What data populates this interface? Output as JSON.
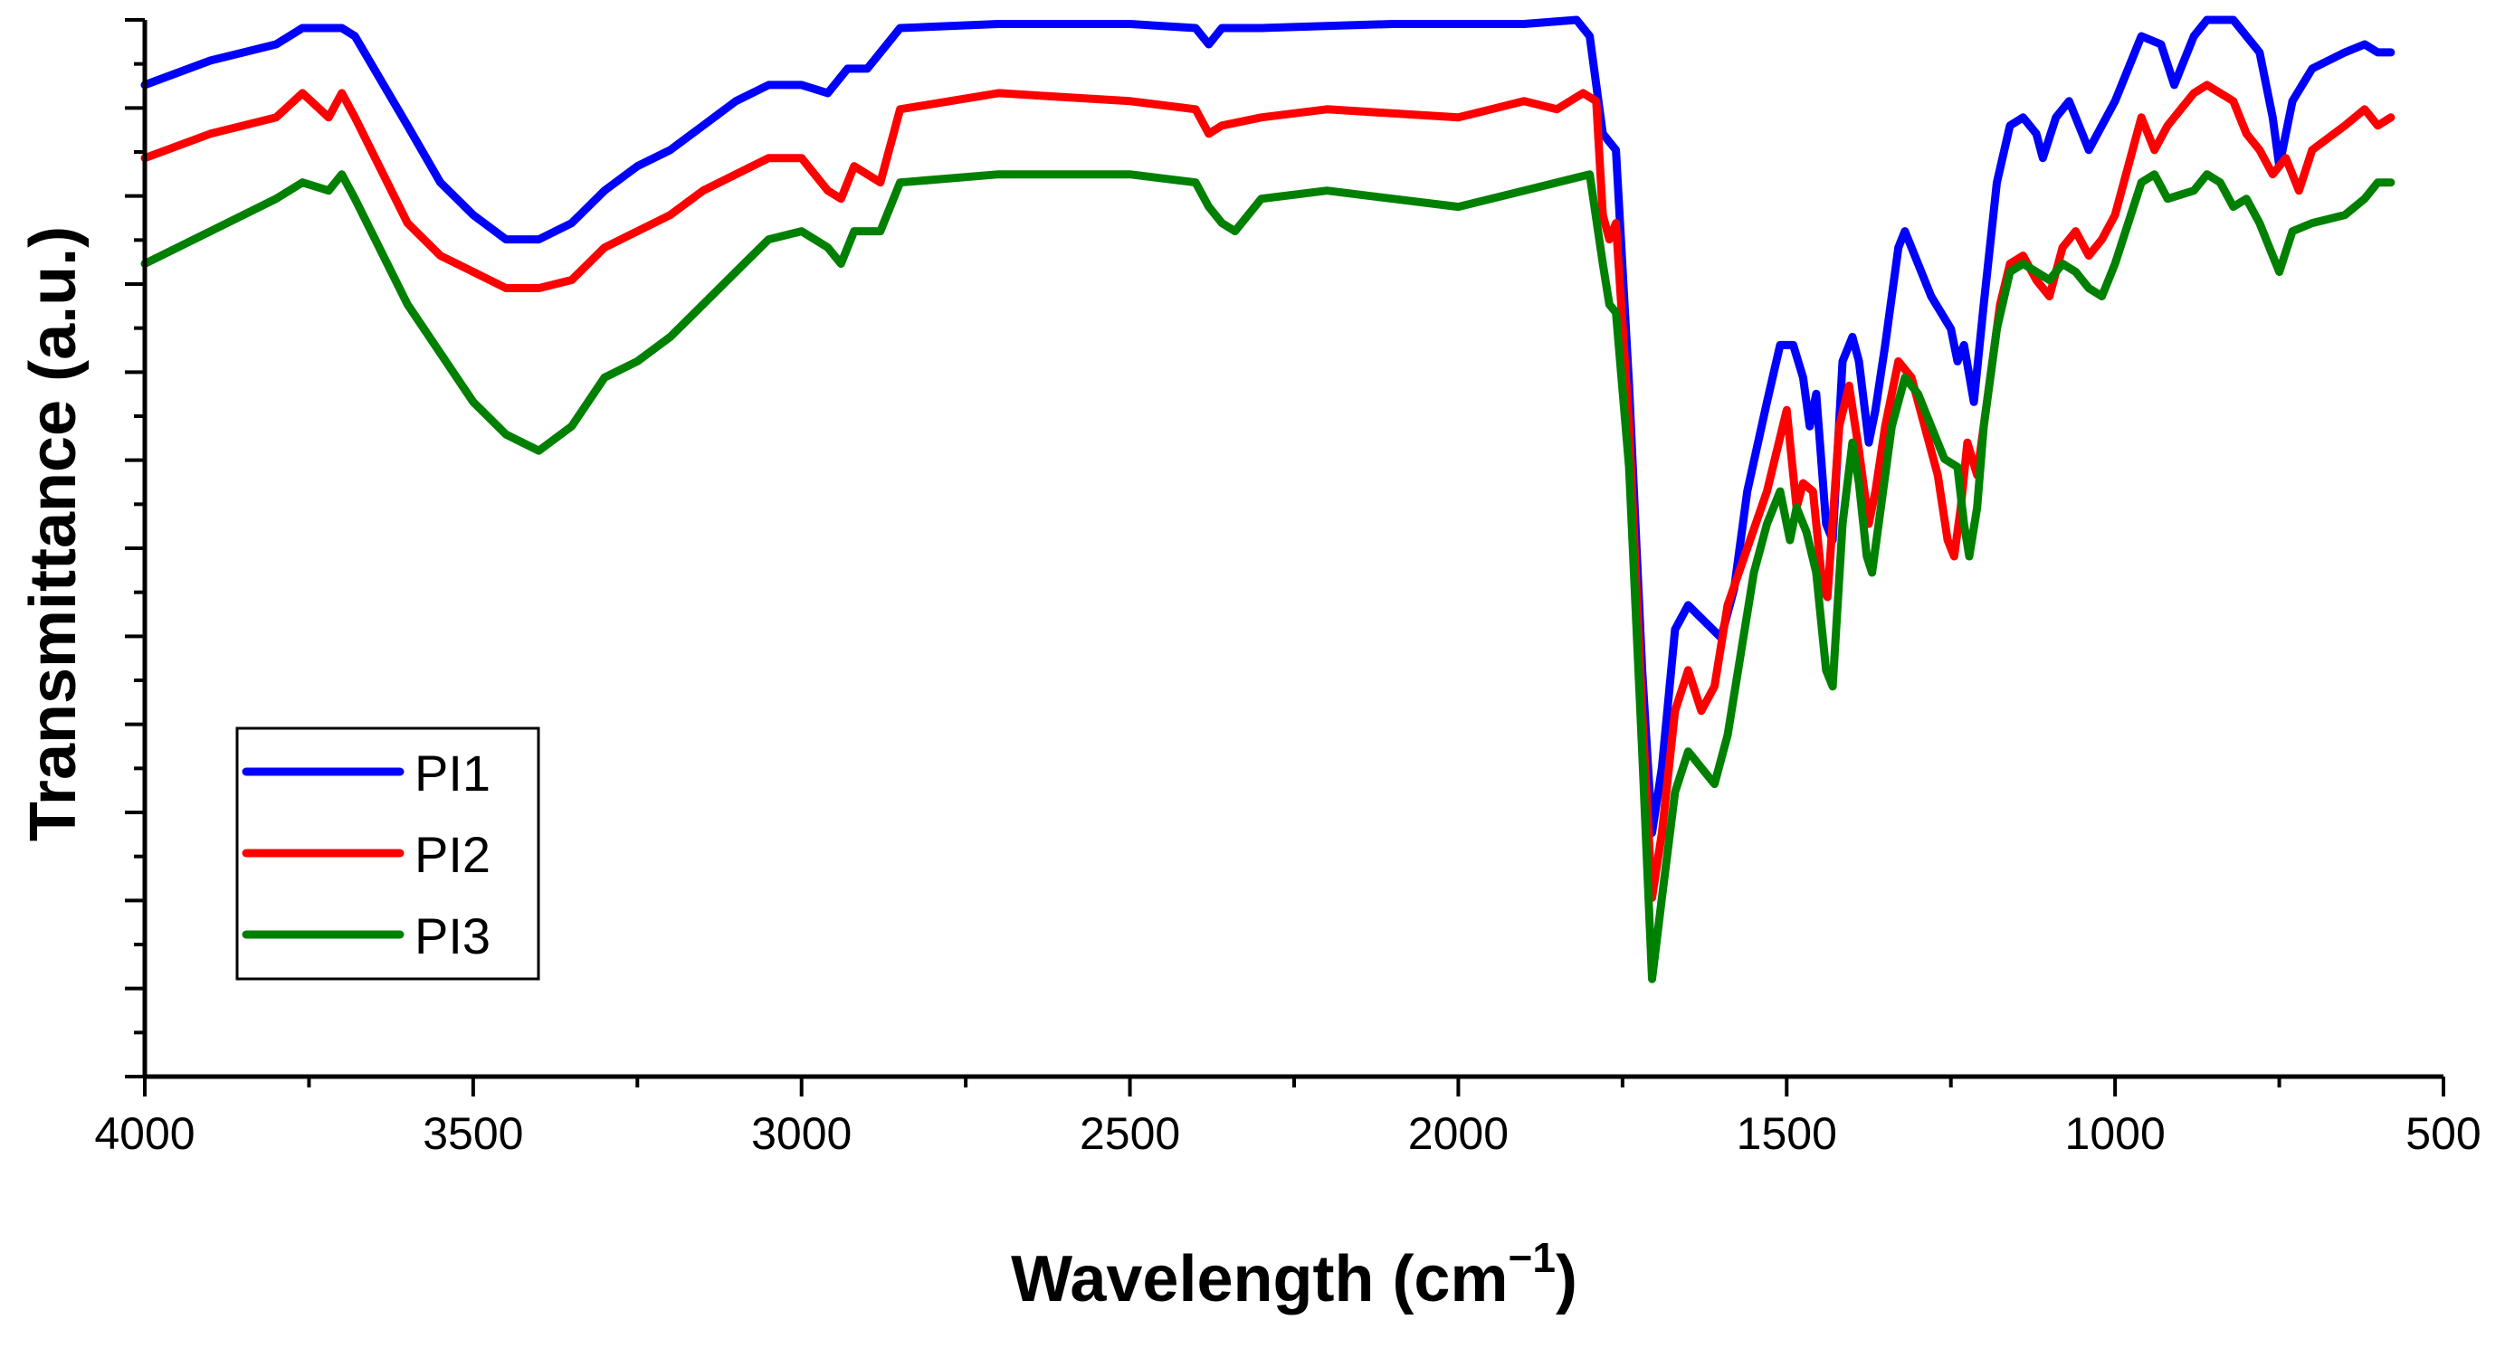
{
  "chart_data": {
    "type": "line",
    "title": "",
    "xlabel": "Wavelength (cm",
    "xlabel_sup": "−1",
    "xlabel_close": ")",
    "ylabel": "Transmittance (a.u.)",
    "xlim": [
      4000,
      500
    ],
    "ylim": [
      0,
      130
    ],
    "x_ticks": [
      4000,
      3500,
      3000,
      2500,
      2000,
      1500,
      1000,
      500
    ],
    "x_tick_labels": [
      "4000",
      "3500",
      "3000",
      "2500",
      "2000",
      "1500",
      "1000",
      "500"
    ],
    "y_major_tick_count": 13,
    "legend_position": "bottom-left",
    "series": [
      {
        "name": "PI1",
        "color": "#0000ff",
        "points": [
          [
            4000,
            122
          ],
          [
            3900,
            125
          ],
          [
            3800,
            127
          ],
          [
            3760,
            129
          ],
          [
            3700,
            129
          ],
          [
            3680,
            128
          ],
          [
            3600,
            117
          ],
          [
            3550,
            110
          ],
          [
            3500,
            106
          ],
          [
            3450,
            103
          ],
          [
            3400,
            103
          ],
          [
            3350,
            105
          ],
          [
            3300,
            109
          ],
          [
            3250,
            112
          ],
          [
            3200,
            114
          ],
          [
            3150,
            117
          ],
          [
            3100,
            120
          ],
          [
            3050,
            122
          ],
          [
            3000,
            122
          ],
          [
            2960,
            121
          ],
          [
            2930,
            124
          ],
          [
            2900,
            124
          ],
          [
            2870,
            127
          ],
          [
            2850,
            129
          ],
          [
            2700,
            129.5
          ],
          [
            2500,
            129.5
          ],
          [
            2400,
            129
          ],
          [
            2380,
            127
          ],
          [
            2360,
            129
          ],
          [
            2300,
            129
          ],
          [
            2100,
            129.5
          ],
          [
            1900,
            129.5
          ],
          [
            1820,
            130
          ],
          [
            1800,
            128
          ],
          [
            1780,
            116
          ],
          [
            1760,
            114
          ],
          [
            1740,
            85
          ],
          [
            1720,
            50
          ],
          [
            1705,
            30
          ],
          [
            1690,
            38
          ],
          [
            1670,
            55
          ],
          [
            1650,
            58
          ],
          [
            1625,
            56
          ],
          [
            1600,
            54
          ],
          [
            1580,
            60
          ],
          [
            1560,
            72
          ],
          [
            1530,
            83
          ],
          [
            1510,
            90
          ],
          [
            1490,
            90
          ],
          [
            1475,
            86
          ],
          [
            1465,
            80
          ],
          [
            1455,
            84
          ],
          [
            1440,
            68
          ],
          [
            1430,
            66
          ],
          [
            1415,
            88
          ],
          [
            1400,
            91
          ],
          [
            1390,
            88
          ],
          [
            1375,
            78
          ],
          [
            1365,
            82
          ],
          [
            1350,
            90
          ],
          [
            1330,
            102
          ],
          [
            1320,
            104
          ],
          [
            1300,
            100
          ],
          [
            1280,
            96
          ],
          [
            1250,
            92
          ],
          [
            1240,
            88
          ],
          [
            1230,
            90
          ],
          [
            1215,
            83
          ],
          [
            1200,
            95
          ],
          [
            1180,
            110
          ],
          [
            1160,
            117
          ],
          [
            1140,
            118
          ],
          [
            1120,
            116
          ],
          [
            1110,
            113
          ],
          [
            1090,
            118
          ],
          [
            1070,
            120
          ],
          [
            1050,
            116
          ],
          [
            1040,
            114
          ],
          [
            1020,
            117
          ],
          [
            1000,
            120
          ],
          [
            960,
            128
          ],
          [
            930,
            127
          ],
          [
            910,
            122
          ],
          [
            880,
            128
          ],
          [
            860,
            130
          ],
          [
            820,
            130
          ],
          [
            800,
            128
          ],
          [
            780,
            126
          ],
          [
            760,
            118
          ],
          [
            750,
            112
          ],
          [
            730,
            120
          ],
          [
            700,
            124
          ],
          [
            650,
            126
          ],
          [
            620,
            127
          ],
          [
            600,
            126
          ],
          [
            580,
            126
          ]
        ]
      },
      {
        "name": "PI2",
        "color": "#ff0000",
        "points": [
          [
            4000,
            113
          ],
          [
            3900,
            116
          ],
          [
            3800,
            118
          ],
          [
            3760,
            121
          ],
          [
            3720,
            118
          ],
          [
            3700,
            121
          ],
          [
            3680,
            118
          ],
          [
            3600,
            105
          ],
          [
            3550,
            101
          ],
          [
            3500,
            99
          ],
          [
            3450,
            97
          ],
          [
            3400,
            97
          ],
          [
            3350,
            98
          ],
          [
            3300,
            102
          ],
          [
            3250,
            104
          ],
          [
            3200,
            106
          ],
          [
            3150,
            109
          ],
          [
            3100,
            111
          ],
          [
            3050,
            113
          ],
          [
            3000,
            113
          ],
          [
            2960,
            109
          ],
          [
            2940,
            108
          ],
          [
            2920,
            112
          ],
          [
            2880,
            110
          ],
          [
            2850,
            119
          ],
          [
            2700,
            121
          ],
          [
            2500,
            120
          ],
          [
            2400,
            119
          ],
          [
            2380,
            116
          ],
          [
            2360,
            117
          ],
          [
            2300,
            118
          ],
          [
            2200,
            119
          ],
          [
            2000,
            118
          ],
          [
            1900,
            120
          ],
          [
            1850,
            119
          ],
          [
            1830,
            120
          ],
          [
            1810,
            121
          ],
          [
            1790,
            120
          ],
          [
            1780,
            106
          ],
          [
            1770,
            103
          ],
          [
            1760,
            105
          ],
          [
            1740,
            80
          ],
          [
            1720,
            45
          ],
          [
            1705,
            22
          ],
          [
            1690,
            30
          ],
          [
            1670,
            45
          ],
          [
            1650,
            50
          ],
          [
            1630,
            45
          ],
          [
            1610,
            48
          ],
          [
            1590,
            58
          ],
          [
            1560,
            65
          ],
          [
            1530,
            72
          ],
          [
            1500,
            82
          ],
          [
            1485,
            70
          ],
          [
            1475,
            73
          ],
          [
            1460,
            72
          ],
          [
            1445,
            60
          ],
          [
            1438,
            59
          ],
          [
            1420,
            80
          ],
          [
            1405,
            85
          ],
          [
            1390,
            77
          ],
          [
            1375,
            68
          ],
          [
            1365,
            72
          ],
          [
            1350,
            80
          ],
          [
            1330,
            88
          ],
          [
            1310,
            86
          ],
          [
            1290,
            80
          ],
          [
            1270,
            74
          ],
          [
            1255,
            66
          ],
          [
            1245,
            64
          ],
          [
            1235,
            70
          ],
          [
            1225,
            78
          ],
          [
            1210,
            74
          ],
          [
            1195,
            83
          ],
          [
            1175,
            95
          ],
          [
            1160,
            100
          ],
          [
            1140,
            101
          ],
          [
            1120,
            98
          ],
          [
            1100,
            96
          ],
          [
            1080,
            102
          ],
          [
            1060,
            104
          ],
          [
            1040,
            101
          ],
          [
            1020,
            103
          ],
          [
            1000,
            106
          ],
          [
            960,
            118
          ],
          [
            940,
            114
          ],
          [
            920,
            117
          ],
          [
            880,
            121
          ],
          [
            860,
            122
          ],
          [
            820,
            120
          ],
          [
            800,
            116
          ],
          [
            780,
            114
          ],
          [
            760,
            111
          ],
          [
            740,
            113
          ],
          [
            720,
            109
          ],
          [
            700,
            114
          ],
          [
            650,
            117
          ],
          [
            620,
            119
          ],
          [
            600,
            117
          ],
          [
            580,
            118
          ]
        ]
      },
      {
        "name": "PI3",
        "color": "#008000",
        "points": [
          [
            4000,
            100
          ],
          [
            3900,
            104
          ],
          [
            3800,
            108
          ],
          [
            3760,
            110
          ],
          [
            3720,
            109
          ],
          [
            3700,
            111
          ],
          [
            3680,
            108
          ],
          [
            3600,
            95
          ],
          [
            3550,
            89
          ],
          [
            3500,
            83
          ],
          [
            3450,
            79
          ],
          [
            3400,
            77
          ],
          [
            3350,
            80
          ],
          [
            3300,
            86
          ],
          [
            3250,
            88
          ],
          [
            3200,
            91
          ],
          [
            3150,
            95
          ],
          [
            3100,
            99
          ],
          [
            3050,
            103
          ],
          [
            3000,
            104
          ],
          [
            2960,
            102
          ],
          [
            2940,
            100
          ],
          [
            2920,
            104
          ],
          [
            2880,
            104
          ],
          [
            2850,
            110
          ],
          [
            2700,
            111
          ],
          [
            2500,
            111
          ],
          [
            2400,
            110
          ],
          [
            2380,
            107
          ],
          [
            2360,
            105
          ],
          [
            2340,
            104
          ],
          [
            2300,
            108
          ],
          [
            2200,
            109
          ],
          [
            2100,
            108
          ],
          [
            2000,
            107
          ],
          [
            1900,
            109
          ],
          [
            1800,
            111
          ],
          [
            1780,
            100
          ],
          [
            1770,
            95
          ],
          [
            1760,
            94
          ],
          [
            1740,
            75
          ],
          [
            1720,
            40
          ],
          [
            1705,
            12
          ],
          [
            1690,
            22
          ],
          [
            1670,
            35
          ],
          [
            1650,
            40
          ],
          [
            1630,
            38
          ],
          [
            1610,
            36
          ],
          [
            1590,
            42
          ],
          [
            1570,
            52
          ],
          [
            1550,
            62
          ],
          [
            1530,
            68
          ],
          [
            1510,
            72
          ],
          [
            1495,
            66
          ],
          [
            1485,
            70
          ],
          [
            1470,
            67
          ],
          [
            1455,
            62
          ],
          [
            1440,
            50
          ],
          [
            1430,
            48
          ],
          [
            1415,
            68
          ],
          [
            1400,
            78
          ],
          [
            1390,
            73
          ],
          [
            1378,
            64
          ],
          [
            1370,
            62
          ],
          [
            1360,
            68
          ],
          [
            1340,
            80
          ],
          [
            1320,
            86
          ],
          [
            1300,
            84
          ],
          [
            1280,
            80
          ],
          [
            1260,
            76
          ],
          [
            1240,
            75
          ],
          [
            1230,
            68
          ],
          [
            1222,
            64
          ],
          [
            1210,
            70
          ],
          [
            1200,
            80
          ],
          [
            1180,
            92
          ],
          [
            1160,
            99
          ],
          [
            1140,
            100
          ],
          [
            1120,
            99
          ],
          [
            1100,
            98
          ],
          [
            1080,
            100
          ],
          [
            1060,
            99
          ],
          [
            1040,
            97
          ],
          [
            1020,
            96
          ],
          [
            1000,
            100
          ],
          [
            960,
            110
          ],
          [
            940,
            111
          ],
          [
            920,
            108
          ],
          [
            880,
            109
          ],
          [
            860,
            111
          ],
          [
            840,
            110
          ],
          [
            820,
            107
          ],
          [
            800,
            108
          ],
          [
            780,
            105
          ],
          [
            760,
            101
          ],
          [
            750,
            99
          ],
          [
            730,
            104
          ],
          [
            700,
            105
          ],
          [
            650,
            106
          ],
          [
            620,
            108
          ],
          [
            600,
            110
          ],
          [
            580,
            110
          ]
        ]
      }
    ]
  }
}
